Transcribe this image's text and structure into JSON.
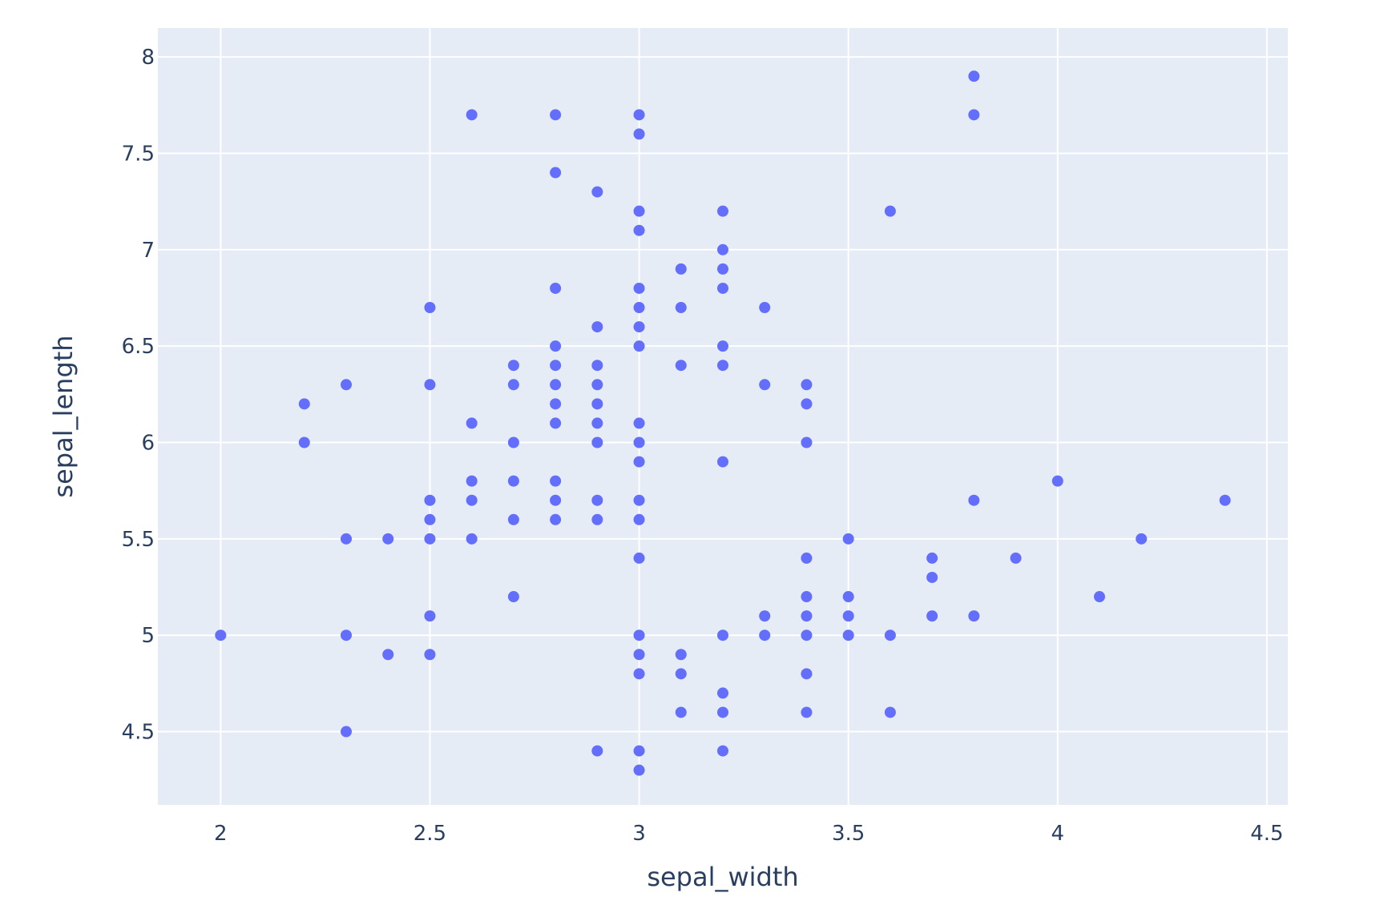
{
  "chart_data": {
    "type": "scatter",
    "title": "",
    "xlabel": "sepal_width",
    "ylabel": "sepal_length",
    "xlim": [
      1.85,
      4.55
    ],
    "ylim": [
      4.12,
      8.15
    ],
    "xticks": [
      2,
      2.5,
      3,
      3.5,
      4,
      4.5
    ],
    "yticks": [
      4.5,
      5,
      5.5,
      6,
      6.5,
      7,
      7.5,
      8
    ],
    "grid": true,
    "colors": {
      "marker": "#636efa",
      "plot_bg": "#e5ecf6",
      "grid": "#ffffff",
      "text": "#2a3f5f"
    },
    "series": [
      {
        "points": [
          [
            2.0,
            5.0
          ],
          [
            2.2,
            6.2
          ],
          [
            2.2,
            6.0
          ],
          [
            2.3,
            6.3
          ],
          [
            2.3,
            5.5
          ],
          [
            2.3,
            5.0
          ],
          [
            2.3,
            4.5
          ],
          [
            2.4,
            5.5
          ],
          [
            2.4,
            4.9
          ],
          [
            2.5,
            6.7
          ],
          [
            2.5,
            6.3
          ],
          [
            2.5,
            5.7
          ],
          [
            2.5,
            5.6
          ],
          [
            2.5,
            5.5
          ],
          [
            2.5,
            5.1
          ],
          [
            2.5,
            4.9
          ],
          [
            2.6,
            7.7
          ],
          [
            2.6,
            6.1
          ],
          [
            2.6,
            5.8
          ],
          [
            2.6,
            5.7
          ],
          [
            2.6,
            5.5
          ],
          [
            2.7,
            6.4
          ],
          [
            2.7,
            6.3
          ],
          [
            2.7,
            6.0
          ],
          [
            2.7,
            5.8
          ],
          [
            2.7,
            5.6
          ],
          [
            2.7,
            5.2
          ],
          [
            2.8,
            7.7
          ],
          [
            2.8,
            7.4
          ],
          [
            2.8,
            6.8
          ],
          [
            2.8,
            6.5
          ],
          [
            2.8,
            6.4
          ],
          [
            2.8,
            6.3
          ],
          [
            2.8,
            6.2
          ],
          [
            2.8,
            6.1
          ],
          [
            2.8,
            5.8
          ],
          [
            2.8,
            5.7
          ],
          [
            2.8,
            5.6
          ],
          [
            2.9,
            7.3
          ],
          [
            2.9,
            6.6
          ],
          [
            2.9,
            6.4
          ],
          [
            2.9,
            6.3
          ],
          [
            2.9,
            6.2
          ],
          [
            2.9,
            6.1
          ],
          [
            2.9,
            6.0
          ],
          [
            2.9,
            5.7
          ],
          [
            2.9,
            5.6
          ],
          [
            2.9,
            4.4
          ],
          [
            3.0,
            7.7
          ],
          [
            3.0,
            7.6
          ],
          [
            3.0,
            7.2
          ],
          [
            3.0,
            7.1
          ],
          [
            3.0,
            6.8
          ],
          [
            3.0,
            6.7
          ],
          [
            3.0,
            6.6
          ],
          [
            3.0,
            6.5
          ],
          [
            3.0,
            6.1
          ],
          [
            3.0,
            6.0
          ],
          [
            3.0,
            5.9
          ],
          [
            3.0,
            5.7
          ],
          [
            3.0,
            5.6
          ],
          [
            3.0,
            5.4
          ],
          [
            3.0,
            5.0
          ],
          [
            3.0,
            4.9
          ],
          [
            3.0,
            4.8
          ],
          [
            3.0,
            4.4
          ],
          [
            3.0,
            4.3
          ],
          [
            3.1,
            6.9
          ],
          [
            3.1,
            6.7
          ],
          [
            3.1,
            6.4
          ],
          [
            3.1,
            4.9
          ],
          [
            3.1,
            4.8
          ],
          [
            3.1,
            4.6
          ],
          [
            3.2,
            7.2
          ],
          [
            3.2,
            7.0
          ],
          [
            3.2,
            6.9
          ],
          [
            3.2,
            6.8
          ],
          [
            3.2,
            6.5
          ],
          [
            3.2,
            6.4
          ],
          [
            3.2,
            5.9
          ],
          [
            3.2,
            5.0
          ],
          [
            3.2,
            4.7
          ],
          [
            3.2,
            4.6
          ],
          [
            3.2,
            4.4
          ],
          [
            3.3,
            6.7
          ],
          [
            3.3,
            6.3
          ],
          [
            3.3,
            5.1
          ],
          [
            3.3,
            5.0
          ],
          [
            3.4,
            6.3
          ],
          [
            3.4,
            6.2
          ],
          [
            3.4,
            6.0
          ],
          [
            3.4,
            5.4
          ],
          [
            3.4,
            5.2
          ],
          [
            3.4,
            5.1
          ],
          [
            3.4,
            5.0
          ],
          [
            3.4,
            4.8
          ],
          [
            3.4,
            4.6
          ],
          [
            3.5,
            5.5
          ],
          [
            3.5,
            5.2
          ],
          [
            3.5,
            5.1
          ],
          [
            3.5,
            5.0
          ],
          [
            3.6,
            7.2
          ],
          [
            3.6,
            5.0
          ],
          [
            3.6,
            4.6
          ],
          [
            3.7,
            5.4
          ],
          [
            3.7,
            5.3
          ],
          [
            3.7,
            5.1
          ],
          [
            3.8,
            7.9
          ],
          [
            3.8,
            7.7
          ],
          [
            3.8,
            5.7
          ],
          [
            3.8,
            5.1
          ],
          [
            3.9,
            5.4
          ],
          [
            4.0,
            5.8
          ],
          [
            4.1,
            5.2
          ],
          [
            4.2,
            5.5
          ],
          [
            4.4,
            5.7
          ]
        ]
      }
    ]
  }
}
